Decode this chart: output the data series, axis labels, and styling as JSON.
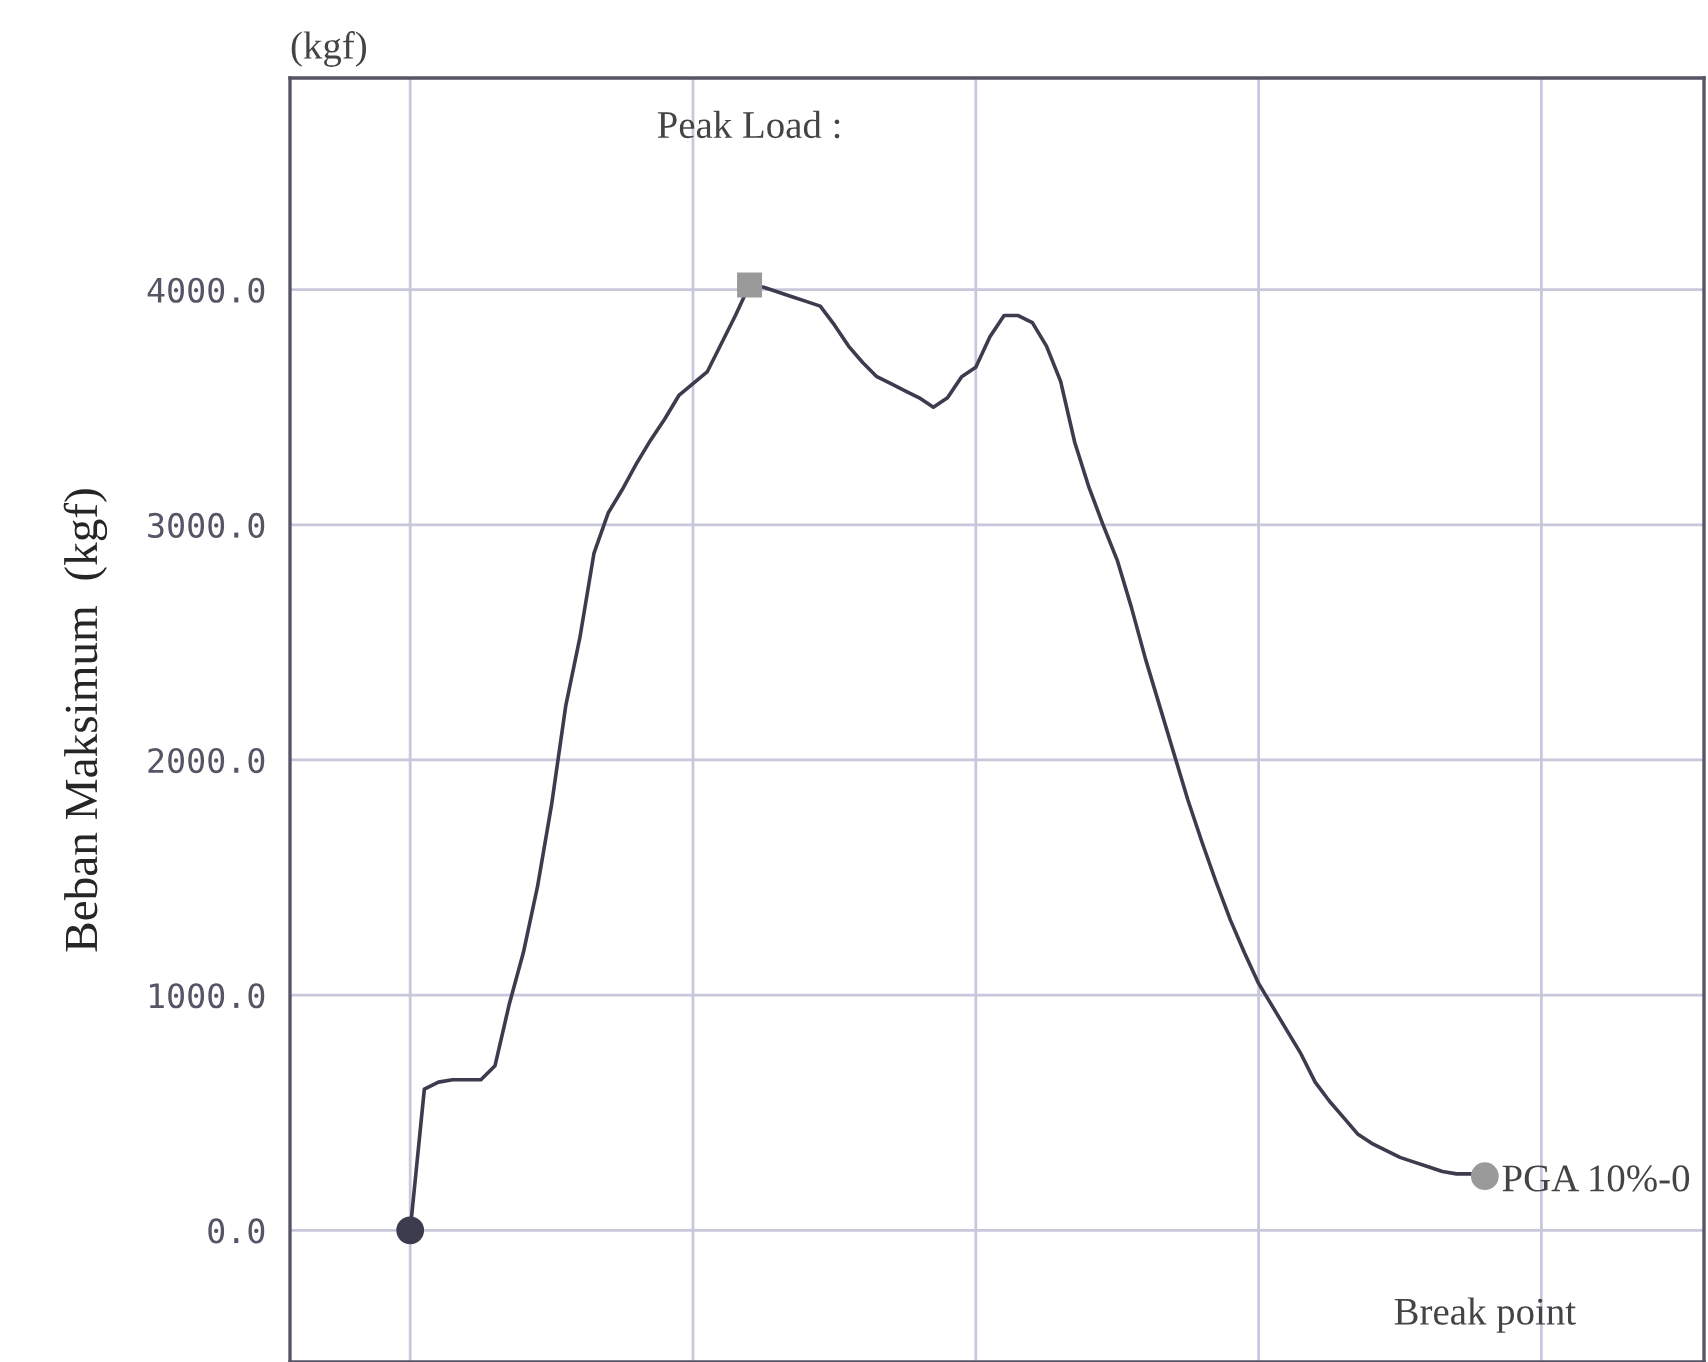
{
  "chart_data": {
    "type": "line",
    "ylabel": "Beban Maksimum  (kgf)",
    "categories": [
      null,
      null,
      null,
      null,
      null,
      null,
      null,
      null,
      null,
      null,
      null,
      null,
      null,
      null,
      null,
      null,
      null,
      null,
      null,
      null,
      null,
      null,
      null,
      null,
      null,
      null,
      null,
      null,
      null,
      null,
      null,
      null,
      null,
      null,
      null,
      null,
      null,
      null,
      null,
      null,
      null,
      null,
      null,
      null,
      null,
      null,
      null,
      null,
      null,
      null,
      null,
      null,
      null,
      null,
      null,
      null,
      null,
      null,
      null,
      null,
      null,
      null,
      null,
      null,
      null,
      null,
      null,
      null,
      null,
      null,
      null,
      null,
      null,
      null,
      null,
      null,
      null,
      null,
      null,
      null,
      null,
      null,
      null,
      null,
      null,
      null,
      null,
      null,
      null,
      null,
      null,
      null,
      null,
      null,
      null,
      null,
      null,
      null,
      null,
      null
    ],
    "ylim": [
      -560,
      4900
    ],
    "yticks": [
      {
        "value": 0,
        "label": "0.0"
      },
      {
        "value": 1000,
        "label": "1000.0"
      },
      {
        "value": 2000,
        "label": "2000.0"
      },
      {
        "value": 3000,
        "label": "3000.0"
      },
      {
        "value": 4000,
        "label": "4000.0"
      }
    ],
    "tick_labels": "y",
    "grid": true,
    "legend": false,
    "series": [
      {
        "color": "#3c3c4e",
        "values": [
          null,
          null,
          null,
          null,
          null,
          null,
          null,
          null,
          0,
          600,
          630,
          640,
          640,
          640,
          700,
          960,
          1180,
          1460,
          1810,
          2230,
          2520,
          2880,
          3050,
          3150,
          3260,
          3360,
          3450,
          3550,
          3600,
          3650,
          3770,
          3890,
          4020,
          4010,
          3990,
          3970,
          3950,
          3930,
          3850,
          3760,
          3690,
          3630,
          3600,
          3570,
          3540,
          3500,
          3540,
          3630,
          3670,
          3800,
          3890,
          3890,
          3860,
          3760,
          3610,
          3350,
          3160,
          3000,
          2850,
          2650,
          2430,
          2230,
          2030,
          1830,
          1650,
          1480,
          1320,
          1180,
          1050,
          950,
          850,
          750,
          630,
          550,
          480,
          410,
          370,
          340,
          310,
          290,
          270,
          250,
          240,
          240,
          230,
          null,
          null,
          null,
          null,
          null,
          null,
          null,
          null,
          null,
          null,
          null,
          null,
          null,
          null,
          null
        ]
      },
      {
        "type": "scatter",
        "marker": "circle",
        "color": "#3c3c4e",
        "values": [
          null,
          null,
          null,
          null,
          null,
          null,
          null,
          null,
          0,
          null,
          null,
          null,
          null,
          null,
          null,
          null,
          null,
          null,
          null,
          null,
          null,
          null,
          null,
          null,
          null,
          null,
          null,
          null,
          null,
          null,
          null,
          null,
          null,
          null,
          null,
          null,
          null,
          null,
          null,
          null,
          null,
          null,
          null,
          null,
          null,
          null,
          null,
          null,
          null,
          null,
          null,
          null,
          null,
          null,
          null,
          null,
          null,
          null,
          null,
          null,
          null,
          null,
          null,
          null,
          null,
          null,
          null,
          null,
          null,
          null,
          null,
          null,
          null,
          null,
          null,
          null,
          null,
          null,
          null,
          null,
          null,
          null,
          null,
          null,
          null,
          null,
          null,
          null,
          null,
          null,
          null,
          null,
          null,
          null,
          null,
          null,
          null,
          null,
          null,
          null
        ]
      },
      {
        "type": "scatter",
        "marker": "square",
        "color": "#9a9a9a",
        "values": [
          null,
          null,
          null,
          null,
          null,
          null,
          null,
          null,
          null,
          null,
          null,
          null,
          null,
          null,
          null,
          null,
          null,
          null,
          null,
          null,
          null,
          null,
          null,
          null,
          null,
          null,
          null,
          null,
          null,
          null,
          null,
          null,
          4020,
          null,
          null,
          null,
          null,
          null,
          null,
          null,
          null,
          null,
          null,
          null,
          null,
          null,
          null,
          null,
          null,
          null,
          null,
          null,
          null,
          null,
          null,
          null,
          null,
          null,
          null,
          null,
          null,
          null,
          null,
          null,
          null,
          null,
          null,
          null,
          null,
          null,
          null,
          null,
          null,
          null,
          null,
          null,
          null,
          null,
          null,
          null,
          null,
          null,
          null,
          null,
          null,
          null,
          null,
          null,
          null,
          null,
          null,
          null,
          null,
          null,
          null,
          null,
          null,
          null,
          null,
          null
        ]
      },
      {
        "type": "scatter",
        "marker": "circle",
        "color": "#9a9a9a",
        "values": [
          null,
          null,
          null,
          null,
          null,
          null,
          null,
          null,
          null,
          null,
          null,
          null,
          null,
          null,
          null,
          null,
          null,
          null,
          null,
          null,
          null,
          null,
          null,
          null,
          null,
          null,
          null,
          null,
          null,
          null,
          null,
          null,
          null,
          null,
          null,
          null,
          null,
          null,
          null,
          null,
          null,
          null,
          null,
          null,
          null,
          null,
          null,
          null,
          null,
          null,
          null,
          null,
          null,
          null,
          null,
          null,
          null,
          null,
          null,
          null,
          null,
          null,
          null,
          null,
          null,
          null,
          null,
          null,
          null,
          null,
          null,
          null,
          null,
          null,
          null,
          null,
          null,
          null,
          null,
          null,
          null,
          null,
          null,
          null,
          230,
          null,
          null,
          null,
          null,
          null,
          null,
          null,
          null,
          null,
          null,
          null,
          null,
          null,
          null,
          null
        ]
      }
    ],
    "annotations": [
      "(kgf)",
      "Peak Load :",
      "PGA 10%-0",
      "Break point"
    ]
  }
}
